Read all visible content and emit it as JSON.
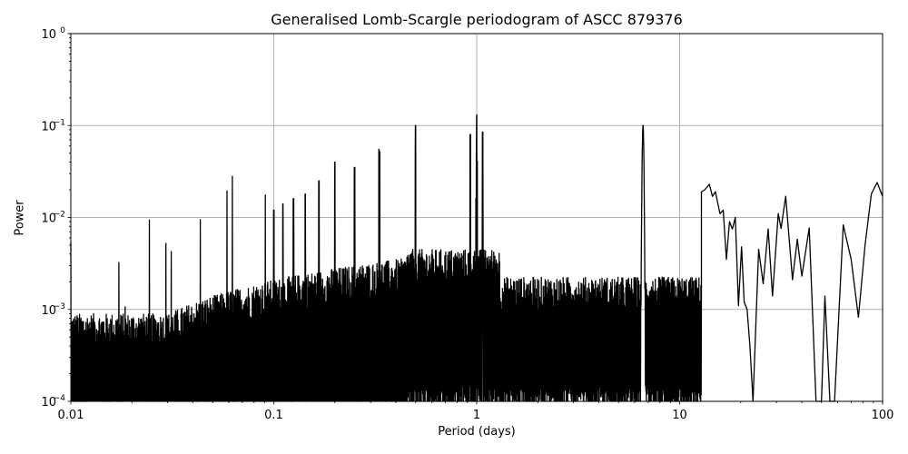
{
  "chart_data": {
    "type": "line",
    "title": "Generalised Lomb-Scargle periodogram of ASCC 879376",
    "xlabel": "Period (days)",
    "ylabel": "Power",
    "xscale": "log",
    "yscale": "log",
    "xlim": [
      0.01,
      100
    ],
    "ylim": [
      0.0001,
      1
    ],
    "grid": true,
    "x_ticks": [
      {
        "value": 0.01,
        "label": "0.01"
      },
      {
        "value": 0.1,
        "label": "0.1"
      },
      {
        "value": 1,
        "label": "1"
      },
      {
        "value": 10,
        "label": "10"
      },
      {
        "value": 100,
        "label": "100"
      }
    ],
    "y_ticks": [
      {
        "value": 0.0001,
        "base": "10",
        "exp": "−4"
      },
      {
        "value": 0.001,
        "base": "10",
        "exp": "−3"
      },
      {
        "value": 0.01,
        "base": "10",
        "exp": "−2"
      },
      {
        "value": 0.1,
        "base": "10",
        "exp": "−1"
      },
      {
        "value": 1,
        "base": "10",
        "exp": "0"
      }
    ],
    "line_color": "#000000",
    "grid_color": "#b0b0b0",
    "notable_peaks": [
      {
        "period": 1.0,
        "power": 0.13
      },
      {
        "period": 0.5,
        "power": 0.1
      },
      {
        "period": 6.6,
        "power": 0.1
      },
      {
        "period": 0.33,
        "power": 0.055
      },
      {
        "period": 0.2,
        "power": 0.04
      },
      {
        "period": 1.07,
        "power": 0.085
      },
      {
        "period": 0.93,
        "power": 0.08
      },
      {
        "period": 0.25,
        "power": 0.035
      },
      {
        "period": 0.167,
        "power": 0.025
      },
      {
        "period": 0.143,
        "power": 0.018
      },
      {
        "period": 0.125,
        "power": 0.016
      },
      {
        "period": 0.111,
        "power": 0.014
      },
      {
        "period": 0.1,
        "power": 0.012
      },
      {
        "period": 14.0,
        "power": 0.023
      },
      {
        "period": 32.5,
        "power": 0.017
      },
      {
        "period": 93.0,
        "power": 0.024
      },
      {
        "period": 63.0,
        "power": 0.0082
      },
      {
        "period": 41.0,
        "power": 0.0077
      },
      {
        "period": 52.0,
        "power": 0.0014
      }
    ],
    "smooth_segment_long_periods": [
      [
        12.8,
        0.019
      ],
      [
        13.3,
        0.02
      ],
      [
        14.0,
        0.023
      ],
      [
        14.5,
        0.017
      ],
      [
        15.0,
        0.019
      ],
      [
        15.8,
        0.011
      ],
      [
        16.4,
        0.012
      ],
      [
        17.0,
        0.0035
      ],
      [
        17.6,
        0.009
      ],
      [
        18.2,
        0.0075
      ],
      [
        18.8,
        0.01
      ],
      [
        19.5,
        0.0011
      ],
      [
        20.2,
        0.0048
      ],
      [
        20.8,
        0.0012
      ],
      [
        21.5,
        0.001
      ],
      [
        22.2,
        0.0004
      ],
      [
        23.0,
        0.0001
      ],
      [
        24.5,
        0.0045
      ],
      [
        25.8,
        0.0019
      ],
      [
        27.3,
        0.0075
      ],
      [
        28.7,
        0.0014
      ],
      [
        30.6,
        0.011
      ],
      [
        31.6,
        0.0076
      ],
      [
        33.3,
        0.017
      ],
      [
        36.0,
        0.0021
      ],
      [
        38.0,
        0.0058
      ],
      [
        40.0,
        0.0023
      ],
      [
        43.5,
        0.0077
      ],
      [
        47.0,
        0.0001
      ],
      [
        50.0,
        0.0001
      ],
      [
        52.0,
        0.0014
      ],
      [
        55.0,
        0.0001
      ],
      [
        58.0,
        0.0001
      ],
      [
        64.0,
        0.0083
      ],
      [
        70.0,
        0.0035
      ],
      [
        76.0,
        0.00082
      ],
      [
        82.0,
        0.005
      ],
      [
        88.0,
        0.018
      ],
      [
        94.0,
        0.024
      ],
      [
        100.0,
        0.017
      ]
    ]
  }
}
